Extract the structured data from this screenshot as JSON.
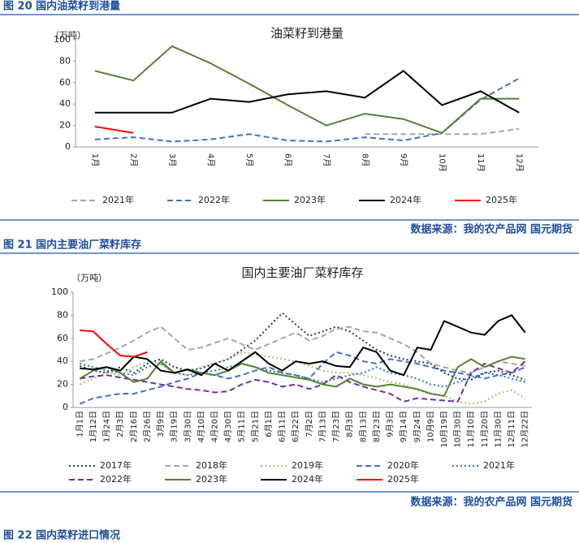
{
  "document": {
    "figures": [
      {
        "caption": "图 20  国内油菜籽到港量",
        "source": "数据来源：我的农产品网  国元期货"
      },
      {
        "caption": "图 21  国内主要油厂菜籽库存",
        "source": "数据来源：我的农产品网  国元期货"
      },
      {
        "caption": "图 22  国内菜籽进口情况"
      }
    ]
  },
  "chart_data": [
    {
      "type": "line",
      "title": "油菜籽到港量",
      "y_label": "（万吨）",
      "categories": [
        "1月",
        "2月",
        "3月",
        "4月",
        "5月",
        "6月",
        "7月",
        "8月",
        "9月",
        "10月",
        "11月",
        "12月"
      ],
      "ylim": [
        0,
        100
      ],
      "yticks": [
        0,
        20,
        40,
        60,
        80,
        100
      ],
      "grid": false,
      "series": [
        {
          "name": "2021年",
          "color": "#a6a6a6",
          "style": "dashed",
          "values": [
            null,
            null,
            null,
            null,
            null,
            null,
            null,
            12,
            12,
            12,
            12,
            17
          ]
        },
        {
          "name": "2022年",
          "color": "#4472c4",
          "style": "dashed",
          "values": [
            7,
            9,
            5,
            7,
            12,
            6,
            5,
            9,
            6,
            13,
            44,
            64
          ]
        },
        {
          "name": "2023年",
          "color": "#548235",
          "style": "solid",
          "values": [
            71,
            62,
            94,
            78,
            59,
            39,
            20,
            31,
            26,
            13,
            45,
            45
          ]
        },
        {
          "name": "2024年",
          "color": "#000000",
          "style": "solid",
          "values": [
            32,
            32,
            32,
            45,
            42,
            49,
            52,
            46,
            71,
            39,
            52,
            32
          ]
        },
        {
          "name": "2025年",
          "color": "#ff0000",
          "style": "solid",
          "values": [
            19,
            13,
            null,
            null,
            null,
            null,
            null,
            null,
            null,
            null,
            null,
            null
          ]
        }
      ]
    },
    {
      "type": "line",
      "title": "国内主要油厂菜籽库存",
      "y_label": "（万吨）",
      "categories": [
        "1月1日",
        "1月12日",
        "1月24日",
        "2月3日",
        "2月16日",
        "2月26日",
        "3月9日",
        "3月19日",
        "3月30日",
        "4月10日",
        "4月20日",
        "4月30日",
        "5月11日",
        "5月21日",
        "6月1日",
        "6月11日",
        "6月22日",
        "7月2日",
        "7月13日",
        "7月23日",
        "8月3日",
        "8月13日",
        "8月23日",
        "9月3日",
        "9月14日",
        "9月24日",
        "10月9日",
        "10月19日",
        "10月30日",
        "11月10日",
        "11月20日",
        "11月30日",
        "12月11日",
        "12月22日"
      ],
      "ylim": [
        0,
        100
      ],
      "yticks": [
        0,
        20,
        40,
        60,
        80,
        100
      ],
      "grid": false,
      "series": [
        {
          "name": "2017年",
          "color": "#1f3a6e",
          "style": "dotted",
          "values": [
            36,
            32,
            30,
            35,
            30,
            38,
            42,
            35,
            32,
            34,
            38,
            42,
            50,
            58,
            70,
            82,
            72,
            62,
            66,
            70,
            66,
            58,
            50,
            45,
            42,
            40,
            38,
            30,
            25,
            24,
            30,
            32,
            28,
            24
          ]
        },
        {
          "name": "2018年",
          "color": "#a6a6a6",
          "style": "dashed",
          "values": [
            40,
            42,
            47,
            52,
            58,
            65,
            70,
            60,
            50,
            52,
            56,
            60,
            55,
            50,
            55,
            60,
            65,
            58,
            62,
            68,
            70,
            66,
            65,
            60,
            55,
            48,
            38,
            35,
            32,
            30,
            35,
            40,
            38,
            36
          ]
        },
        {
          "name": "2019年",
          "color": "#b5b96a",
          "style": "dotted",
          "values": [
            20,
            25,
            30,
            28,
            35,
            40,
            38,
            30,
            28,
            35,
            38,
            42,
            48,
            46,
            44,
            42,
            40,
            36,
            32,
            30,
            30,
            28,
            25,
            22,
            20,
            15,
            12,
            10,
            5,
            3,
            5,
            12,
            15,
            8
          ]
        },
        {
          "name": "2020年",
          "color": "#4472c4",
          "style": "dashed",
          "values": [
            3,
            8,
            10,
            12,
            12,
            15,
            18,
            22,
            25,
            30,
            28,
            25,
            28,
            32,
            35,
            30,
            28,
            25,
            38,
            48,
            45,
            40,
            38,
            42,
            40,
            38,
            35,
            32,
            30,
            28,
            25,
            28,
            30,
            35
          ]
        },
        {
          "name": "2021年",
          "color": "#2e75b6",
          "style": "dotted",
          "values": [
            38,
            35,
            32,
            30,
            28,
            35,
            38,
            30,
            28,
            30,
            32,
            35,
            38,
            35,
            32,
            30,
            28,
            25,
            22,
            25,
            28,
            30,
            35,
            30,
            28,
            25,
            20,
            18,
            22,
            26,
            30,
            28,
            25,
            22
          ]
        },
        {
          "name": "2022年",
          "color": "#7030a0",
          "style": "dashed",
          "values": [
            25,
            27,
            28,
            26,
            24,
            22,
            20,
            18,
            16,
            15,
            13,
            14,
            20,
            24,
            22,
            18,
            20,
            16,
            20,
            28,
            22,
            18,
            15,
            12,
            5,
            8,
            7,
            6,
            5,
            30,
            38,
            34,
            30,
            40
          ]
        },
        {
          "name": "2023年",
          "color": "#548235",
          "style": "solid",
          "values": [
            25,
            32,
            35,
            30,
            22,
            25,
            40,
            30,
            33,
            30,
            28,
            32,
            38,
            35,
            30,
            28,
            26,
            24,
            20,
            18,
            25,
            20,
            18,
            20,
            18,
            16,
            12,
            10,
            35,
            42,
            35,
            40,
            44,
            42
          ]
        },
        {
          "name": "2024年",
          "color": "#000000",
          "style": "solid",
          "values": [
            34,
            33,
            35,
            32,
            44,
            42,
            32,
            30,
            33,
            28,
            38,
            32,
            40,
            48,
            38,
            32,
            40,
            38,
            40,
            36,
            35,
            52,
            48,
            32,
            28,
            52,
            50,
            75,
            70,
            65,
            63,
            75,
            80,
            65
          ]
        },
        {
          "name": "2025年",
          "color": "#ff0000",
          "style": "solid",
          "values": [
            67,
            66,
            55,
            45,
            44,
            48,
            null,
            null,
            null,
            null,
            null,
            null,
            null,
            null,
            null,
            null,
            null,
            null,
            null,
            null,
            null,
            null,
            null,
            null,
            null,
            null,
            null,
            null,
            null,
            null,
            null,
            null,
            null,
            null
          ]
        }
      ]
    }
  ]
}
